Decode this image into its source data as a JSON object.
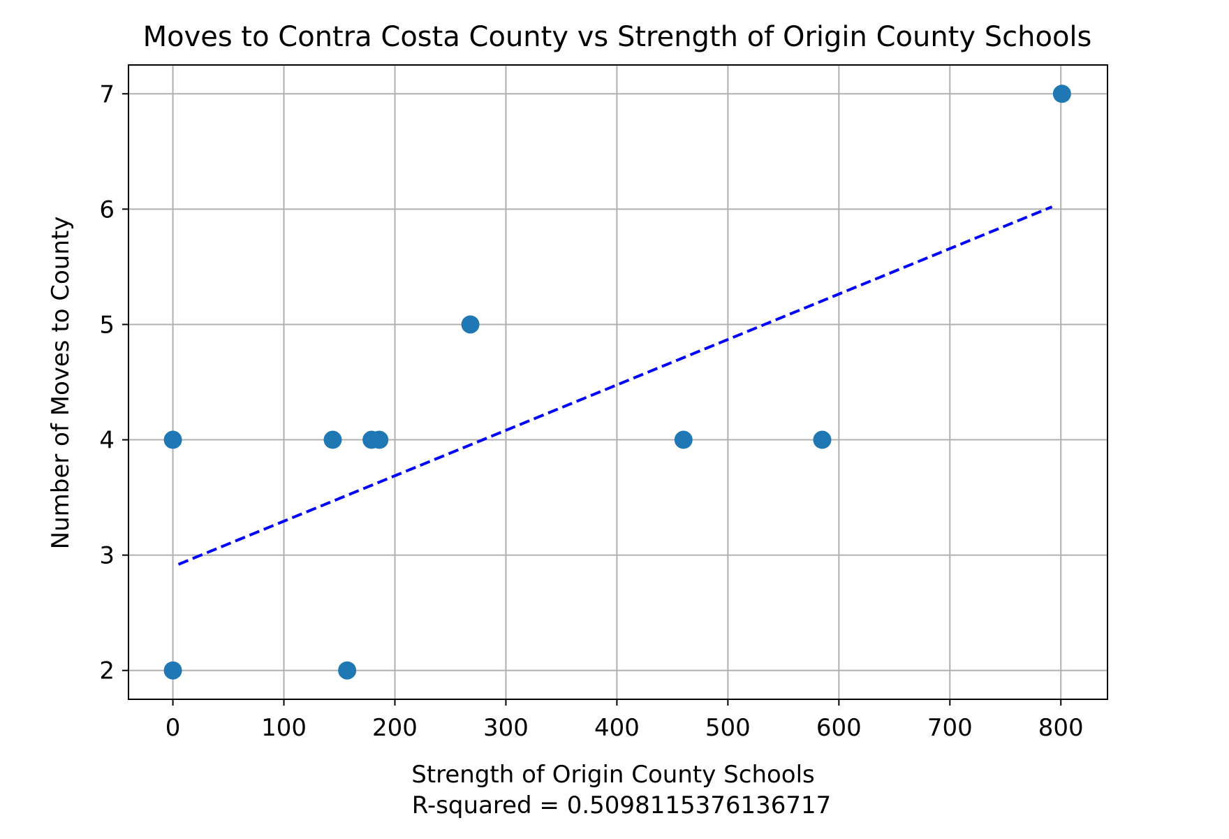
{
  "chart_data": {
    "type": "scatter",
    "title": "Moves to Contra Costa County vs Strength of Origin County Schools",
    "xlabel": "Strength of Origin County Schools",
    "xlabel2": "R-squared = 0.5098115376136717",
    "ylabel": "Number of Moves to County",
    "xlim": [
      -40,
      842
    ],
    "ylim": [
      1.75,
      7.25
    ],
    "x_ticks": [
      "0",
      "100",
      "200",
      "300",
      "400",
      "500",
      "600",
      "700",
      "800"
    ],
    "y_ticks": [
      "2",
      "3",
      "4",
      "5",
      "6",
      "7"
    ],
    "grid": true,
    "points": [
      {
        "x": 0,
        "y": 4
      },
      {
        "x": 0,
        "y": 2
      },
      {
        "x": 144,
        "y": 4
      },
      {
        "x": 157,
        "y": 2
      },
      {
        "x": 179,
        "y": 4
      },
      {
        "x": 186,
        "y": 4
      },
      {
        "x": 268,
        "y": 5
      },
      {
        "x": 460,
        "y": 4
      },
      {
        "x": 585,
        "y": 4
      },
      {
        "x": 801,
        "y": 7
      }
    ],
    "trendline": {
      "x": [
        5,
        792
      ],
      "y": [
        2.92,
        6.02
      ],
      "style": "dashed"
    },
    "colors": {
      "points": "#1f77b4",
      "trendline": "#0000ff",
      "grid": "#b0b0b0"
    }
  }
}
